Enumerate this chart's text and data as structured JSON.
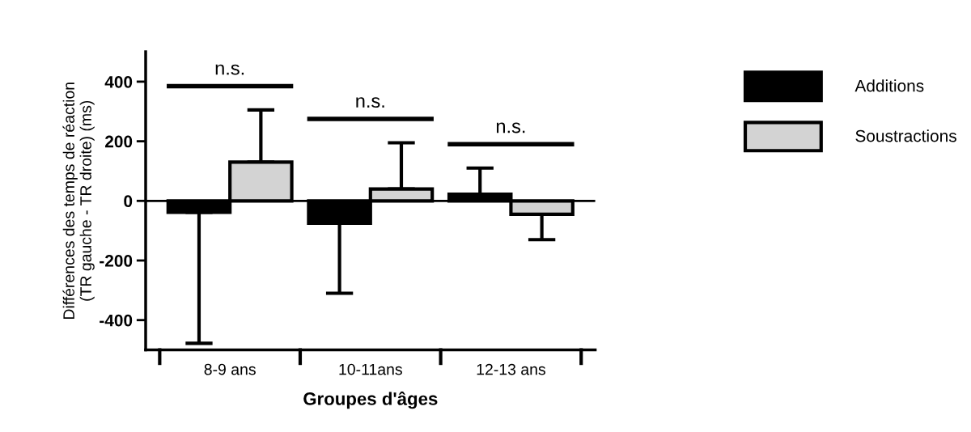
{
  "chart_data": {
    "type": "bar",
    "ylabel": "Différences des temps de réaction\n(TR gauche - TR droite) (ms)",
    "xlabel": "Groupes d'âges",
    "categories": [
      "8-9 ans",
      "10-11ans",
      "12-13 ans"
    ],
    "series": [
      {
        "name": "Additions",
        "color": "#000000",
        "values": [
          -38,
          -75,
          22
        ],
        "errors": [
          [
            -478,
            -38
          ],
          [
            -310,
            -75
          ],
          [
            22,
            110
          ]
        ]
      },
      {
        "name": "Soustractions",
        "color": "#d3d3d3",
        "values": [
          130,
          40,
          -45
        ],
        "errors": [
          [
            130,
            305
          ],
          [
            40,
            195
          ],
          [
            -130,
            -45
          ]
        ]
      }
    ],
    "ylim": [
      -500,
      500
    ],
    "yticks": [
      -400,
      -200,
      0,
      200,
      400
    ],
    "ref_lines": [
      {
        "axis": "y",
        "value": 0
      }
    ],
    "annotations": [
      "n.s.",
      "n.s.",
      "n.s."
    ],
    "legend": "right",
    "grid": false
  }
}
